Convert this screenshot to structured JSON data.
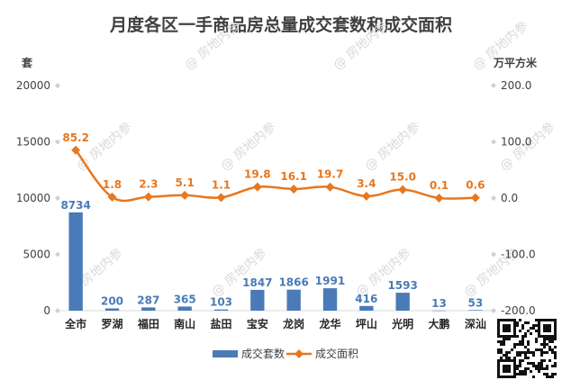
{
  "chart_data": {
    "type": "bar+line",
    "title": "月度各区一手商品房总量成交套数和成交面积",
    "left_unit": "套",
    "right_unit": "万平方米",
    "categories": [
      "全市",
      "罗湖",
      "福田",
      "南山",
      "盐田",
      "宝安",
      "龙岗",
      "龙华",
      "坪山",
      "光明",
      "大鹏",
      "深汕"
    ],
    "series": [
      {
        "name": "成交套数",
        "type": "bar",
        "axis": "left",
        "color": "#4a7ab7",
        "values": [
          8734,
          200,
          287,
          365,
          103,
          1847,
          1866,
          1991,
          416,
          1593,
          13,
          53
        ]
      },
      {
        "name": "成交面积",
        "type": "line",
        "axis": "right",
        "color": "#e8771e",
        "values": [
          85.2,
          1.8,
          2.3,
          5.1,
          1.1,
          19.8,
          16.1,
          19.7,
          3.4,
          15.0,
          0.1,
          0.6
        ]
      }
    ],
    "y_left": {
      "min": 0,
      "max": 20000,
      "ticks": [
        "0",
        "5000",
        "10000",
        "15000",
        "20000"
      ]
    },
    "y_right": {
      "min": -200,
      "max": 200,
      "ticks": [
        "-200.0",
        "-100.0",
        "0.0",
        "100.0",
        "200.0"
      ]
    },
    "bar_labels": [
      "8734",
      "200",
      "287",
      "365",
      "103",
      "1847",
      "1866",
      "1991",
      "416",
      "1593",
      "13",
      "53"
    ],
    "line_labels": [
      "85.2",
      "1.8",
      "2.3",
      "5.1",
      "1.1",
      "19.8",
      "16.1",
      "19.7",
      "3.4",
      "15.0",
      "0.1",
      "0.6"
    ],
    "grid": false,
    "legend_position": "bottom",
    "watermark": "房地内参"
  }
}
